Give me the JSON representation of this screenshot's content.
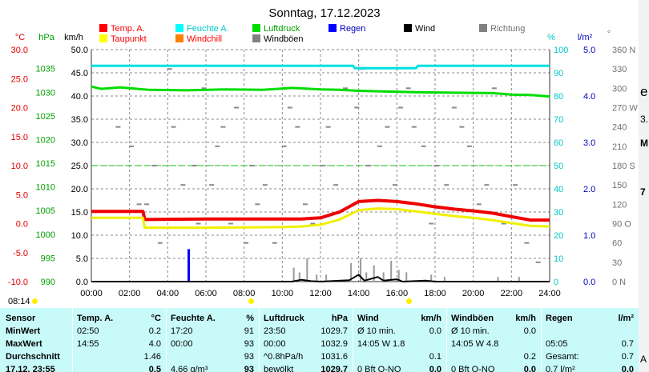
{
  "chart_data": {
    "type": "line",
    "title": "Sonntag, 17.12.2023",
    "x_ticks": [
      "00:00",
      "02:00",
      "04:00",
      "06:00",
      "08:00",
      "10:00",
      "12:00",
      "14:00",
      "16:00",
      "18:00",
      "20:00",
      "22:00",
      "24:00"
    ],
    "x_range": [
      0,
      24
    ],
    "axes": {
      "temp": {
        "unit": "°C",
        "ticks": [
          "30.0",
          "25.0",
          "20.0",
          "15.0",
          "10.0",
          "5.0",
          "0.0",
          "-5.0",
          "-10.0"
        ],
        "range": [
          -10,
          30
        ],
        "color": "#e00000"
      },
      "pressure": {
        "unit": "hPa",
        "ticks": [
          "1035",
          "1030",
          "1025",
          "1020",
          "1015",
          "1010",
          "1005",
          "1000",
          "995",
          "990"
        ],
        "range": [
          990,
          1039
        ],
        "color": "#00a000"
      },
      "wind": {
        "unit": "km/h",
        "ticks": [
          "50.0",
          "45.0",
          "40.0",
          "35.0",
          "30.0",
          "25.0",
          "20.0",
          "15.0",
          "10.0",
          "5.0",
          "0.0"
        ],
        "range": [
          0,
          50
        ],
        "color": "#000000"
      },
      "humidity": {
        "unit": "%",
        "ticks": [
          "100",
          "90",
          "80",
          "70",
          "60",
          "50",
          "40",
          "30",
          "20",
          "10",
          "0"
        ],
        "range": [
          0,
          100
        ],
        "color": "#00c8c8"
      },
      "rain": {
        "unit": "l/m²",
        "ticks": [
          "5.0",
          "4.0",
          "3.0",
          "2.0",
          "1.0",
          "0.0"
        ],
        "range": [
          0,
          5
        ],
        "color": "#0000c0"
      },
      "direction": {
        "unit": "°",
        "ticks": [
          "360 N",
          "330",
          "300",
          "270 W",
          "240",
          "210",
          "180 S",
          "150",
          "120",
          "90 O",
          "60",
          "30",
          "0 N"
        ],
        "range": [
          0,
          360
        ],
        "color": "#707070"
      }
    },
    "legend": [
      {
        "name": "Temp. A.",
        "color": "#ff0000"
      },
      {
        "name": "Feuchte A.",
        "color": "#00ffff"
      },
      {
        "name": "Luftdruck",
        "color": "#00dd00"
      },
      {
        "name": "Regen",
        "color": "#0000ff"
      },
      {
        "name": "Wind",
        "color": "#000000"
      },
      {
        "name": "Richtung",
        "color": "#808080"
      },
      {
        "name": "Taupunkt",
        "color": "#ffff00"
      },
      {
        "name": "Windchill",
        "color": "#ff8000"
      },
      {
        "name": "Windböen",
        "color": "#808080"
      }
    ],
    "series": [
      {
        "name": "Temp. A.",
        "axis": "temp",
        "color": "#ee0000",
        "points": [
          [
            0,
            2.1
          ],
          [
            2.7,
            2.1
          ],
          [
            2.8,
            0.7
          ],
          [
            6,
            0.8
          ],
          [
            10,
            0.8
          ],
          [
            11,
            0.8
          ],
          [
            12,
            1.0
          ],
          [
            13,
            2.0
          ],
          [
            14,
            3.8
          ],
          [
            15,
            4.0
          ],
          [
            16,
            3.8
          ],
          [
            17,
            3.4
          ],
          [
            18,
            2.9
          ],
          [
            19,
            2.5
          ],
          [
            20,
            2.2
          ],
          [
            21,
            1.8
          ],
          [
            22,
            1.2
          ],
          [
            23,
            0.6
          ],
          [
            24,
            0.6
          ]
        ]
      },
      {
        "name": "Taupunkt",
        "axis": "temp",
        "color": "#f0f000",
        "points": [
          [
            0,
            1.0
          ],
          [
            2.7,
            1.0
          ],
          [
            2.8,
            -0.7
          ],
          [
            6,
            -0.7
          ],
          [
            10,
            -0.6
          ],
          [
            11,
            -0.5
          ],
          [
            12,
            -0.2
          ],
          [
            13,
            0.7
          ],
          [
            14,
            2.3
          ],
          [
            15,
            2.6
          ],
          [
            16,
            2.5
          ],
          [
            17,
            2.1
          ],
          [
            18,
            1.7
          ],
          [
            19,
            1.3
          ],
          [
            20,
            1.0
          ],
          [
            21,
            0.6
          ],
          [
            22,
            0.1
          ],
          [
            23,
            -0.4
          ],
          [
            24,
            -0.5
          ]
        ]
      },
      {
        "name": "Feuchte A.",
        "axis": "humidity",
        "color": "#00e0e0",
        "points": [
          [
            0,
            93
          ],
          [
            13.7,
            93
          ],
          [
            13.8,
            92
          ],
          [
            17,
            92
          ],
          [
            17.1,
            93
          ],
          [
            24,
            93
          ]
        ]
      },
      {
        "name": "Luftdruck",
        "axis": "pressure",
        "color": "#00dd00",
        "points": [
          [
            0,
            1031.2
          ],
          [
            0.5,
            1030.7
          ],
          [
            1.5,
            1031.0
          ],
          [
            3,
            1030.5
          ],
          [
            5,
            1030.4
          ],
          [
            7,
            1030.6
          ],
          [
            9,
            1030.5
          ],
          [
            10.5,
            1030.9
          ],
          [
            12,
            1030.6
          ],
          [
            13,
            1030.5
          ],
          [
            14,
            1030.3
          ],
          [
            15,
            1030.2
          ],
          [
            17,
            1030.0
          ],
          [
            19,
            1029.9
          ],
          [
            21,
            1029.8
          ],
          [
            22,
            1029.5
          ],
          [
            23,
            1029.4
          ],
          [
            24,
            1029.1
          ]
        ]
      },
      {
        "name": "Wind",
        "axis": "wind",
        "color": "#000000",
        "points": [
          [
            0,
            0
          ],
          [
            10.5,
            0
          ],
          [
            11,
            0.4
          ],
          [
            11.5,
            0.1
          ],
          [
            12,
            0
          ],
          [
            13.5,
            0.3
          ],
          [
            14,
            1.5
          ],
          [
            14.3,
            0.2
          ],
          [
            15,
            1.0
          ],
          [
            15.3,
            0.2
          ],
          [
            16,
            0.5
          ],
          [
            16.3,
            0
          ],
          [
            17.5,
            0.2
          ],
          [
            18,
            0
          ],
          [
            24,
            0
          ]
        ]
      }
    ],
    "rain_bars": [
      [
        5.1,
        0.7
      ]
    ],
    "gust_bars": [
      [
        10.6,
        3
      ],
      [
        10.9,
        2
      ],
      [
        11.3,
        5
      ],
      [
        11.8,
        1.5
      ],
      [
        12.3,
        1.5
      ],
      [
        13.6,
        4
      ],
      [
        14.1,
        5
      ],
      [
        14.4,
        2
      ],
      [
        14.8,
        3.5
      ],
      [
        15.3,
        2
      ],
      [
        15.7,
        4.5
      ],
      [
        16.1,
        2.5
      ],
      [
        16.5,
        2
      ],
      [
        17.8,
        1.5
      ],
      [
        18.5,
        1
      ],
      [
        21.3,
        1
      ],
      [
        22.4,
        1
      ]
    ],
    "direction_marks": [
      [
        0.4,
        300
      ],
      [
        1.4,
        240
      ],
      [
        2.1,
        210
      ],
      [
        2.5,
        120
      ],
      [
        2.9,
        120
      ],
      [
        3.3,
        180
      ],
      [
        3.6,
        60
      ],
      [
        4.1,
        330
      ],
      [
        4.3,
        240
      ],
      [
        4.8,
        150
      ],
      [
        5.4,
        180
      ],
      [
        5.6,
        90
      ],
      [
        5.9,
        300
      ],
      [
        6.3,
        150
      ],
      [
        6.6,
        210
      ],
      [
        6.9,
        240
      ],
      [
        7.3,
        90
      ],
      [
        7.6,
        270
      ],
      [
        8.1,
        60
      ],
      [
        8.4,
        180
      ],
      [
        8.7,
        120
      ],
      [
        9.1,
        150
      ],
      [
        9.6,
        60
      ],
      [
        10.1,
        210
      ],
      [
        10.4,
        270
      ],
      [
        10.8,
        240
      ],
      [
        11.2,
        120
      ],
      [
        11.6,
        90
      ],
      [
        12.1,
        180
      ],
      [
        12.4,
        240
      ],
      [
        12.8,
        150
      ],
      [
        13.3,
        300
      ],
      [
        13.9,
        270
      ],
      [
        14.2,
        330
      ],
      [
        14.5,
        180
      ],
      [
        15.1,
        210
      ],
      [
        15.5,
        240
      ],
      [
        15.9,
        150
      ],
      [
        16.2,
        270
      ],
      [
        16.6,
        300
      ],
      [
        16.9,
        240
      ],
      [
        17.4,
        210
      ],
      [
        17.8,
        90
      ],
      [
        18.1,
        180
      ],
      [
        18.6,
        150
      ],
      [
        19.0,
        270
      ],
      [
        19.4,
        240
      ],
      [
        19.8,
        210
      ],
      [
        20.3,
        120
      ],
      [
        20.7,
        150
      ],
      [
        21.1,
        300
      ],
      [
        21.6,
        90
      ],
      [
        22.2,
        150
      ],
      [
        22.8,
        60
      ],
      [
        23.4,
        30
      ]
    ],
    "reference_line": {
      "axis": "humidity",
      "value": 50,
      "color": "#00c800"
    },
    "sun_marks": {
      "sunrise_label": "08:14",
      "sunrise_hour": 8.23,
      "sunset_hour": 16.6
    }
  },
  "table": {
    "row_labels": [
      "Sensor",
      "MinWert",
      "MaxWert",
      "Durchschnitt",
      "17.12. 23:55"
    ],
    "columns": [
      {
        "name": "Temp. A.",
        "unit": "°C",
        "cells": [
          [
            "02:50",
            "0.2"
          ],
          [
            "14:55",
            "4.0"
          ],
          [
            "",
            "1.46"
          ],
          [
            "",
            "0.5"
          ]
        ]
      },
      {
        "name": "Feuchte A.",
        "unit": "%",
        "cells": [
          [
            "17:20",
            "91"
          ],
          [
            "00:00",
            "93"
          ],
          [
            "",
            "93"
          ],
          [
            "4.66 g/m³",
            "93"
          ]
        ]
      },
      {
        "name": "Luftdruck",
        "unit": "hPa",
        "cells": [
          [
            "23:50",
            "1029.7"
          ],
          [
            "00:00",
            "1032.9"
          ],
          [
            "^0.8hPa/h",
            "1031.6"
          ],
          [
            "bewölkt",
            "1029.7"
          ]
        ]
      },
      {
        "name": "Wind",
        "unit": "km/h",
        "cells": [
          [
            "Ø 10 min.",
            "0.0"
          ],
          [
            "14:05    W 1.8",
            ""
          ],
          [
            "",
            "0.1"
          ],
          [
            "0 Bft O-NO",
            "0.0"
          ]
        ]
      },
      {
        "name": "Windböen",
        "unit": "km/h",
        "cells": [
          [
            "Ø 10 min.",
            "0.0"
          ],
          [
            "14:05    W 4.8",
            ""
          ],
          [
            "",
            "0.2"
          ],
          [
            "0 Bft O-NO",
            "0.0"
          ]
        ]
      },
      {
        "name": "Regen",
        "unit": "l/m²",
        "cells": [
          [
            "",
            ""
          ],
          [
            "05:05",
            "0.7"
          ],
          [
            "Gesamt:",
            "0.7"
          ],
          [
            "0.7 l/m²",
            "0.0"
          ]
        ]
      }
    ]
  },
  "side_panel": {
    "text": [
      "e",
      "3.",
      "M",
      "7",
      "A"
    ]
  }
}
